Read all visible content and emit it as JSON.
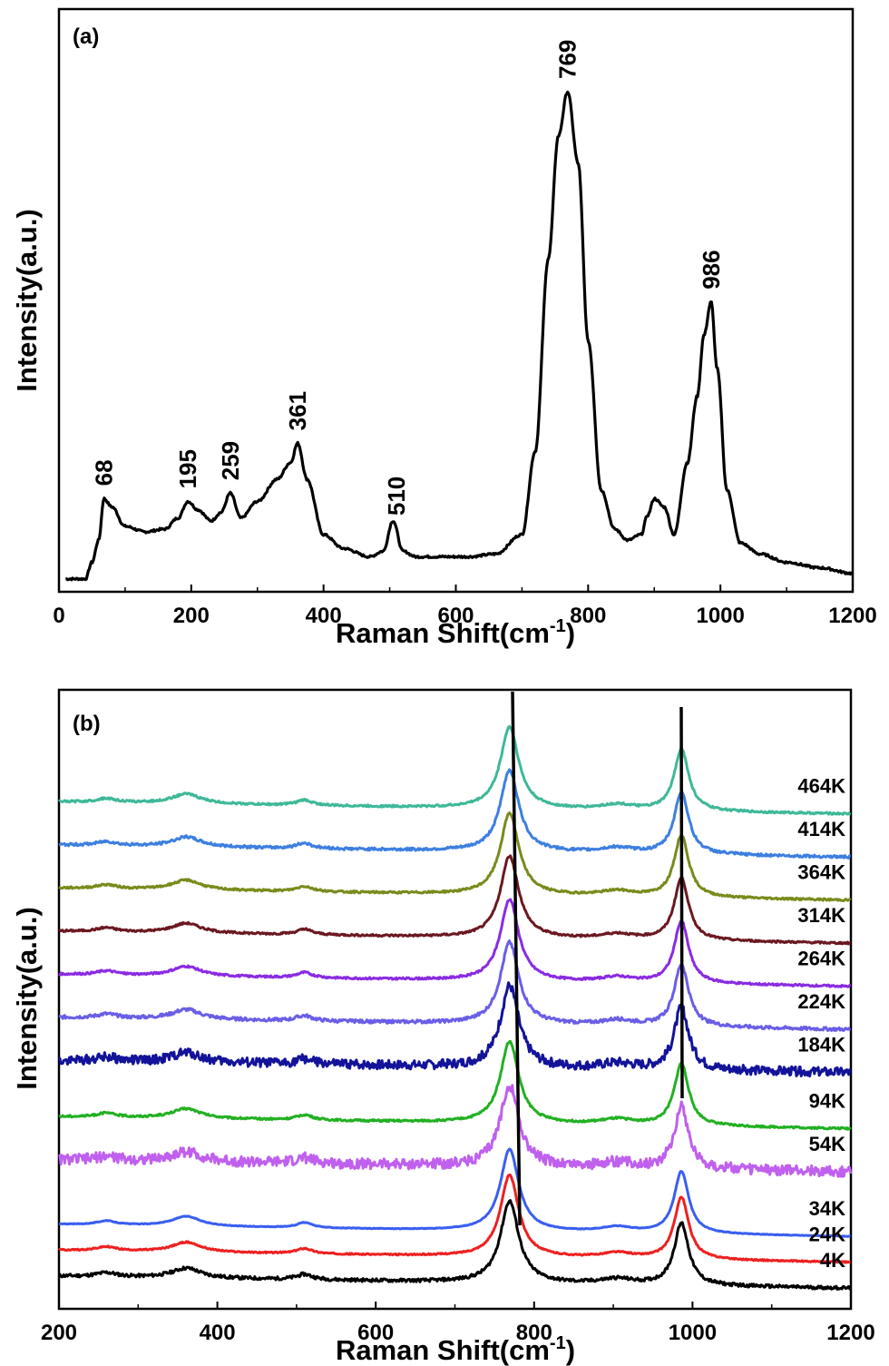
{
  "chart_data": [
    {
      "type": "line",
      "panel_label": "(a)",
      "xlabel": "Raman Shift(cm",
      "xlabel_sup": "-1",
      "xlabel_close": ")",
      "ylabel": "Intensity(a.u.)",
      "xlim": [
        0,
        1200
      ],
      "ylim": [
        0,
        1.0
      ],
      "xticks": [
        0,
        200,
        400,
        600,
        800,
        1000,
        1200
      ],
      "peak_labels": [
        {
          "x": 68,
          "text": "68"
        },
        {
          "x": 195,
          "text": "195"
        },
        {
          "x": 259,
          "text": "259"
        },
        {
          "x": 361,
          "text": "361"
        },
        {
          "x": 510,
          "text": "510"
        },
        {
          "x": 769,
          "text": "769"
        },
        {
          "x": 986,
          "text": "986"
        }
      ],
      "series": [
        {
          "color": "#000000",
          "x": [
            10,
            40,
            50,
            60,
            68,
            80,
            100,
            130,
            160,
            180,
            195,
            210,
            230,
            245,
            259,
            275,
            300,
            330,
            350,
            361,
            375,
            400,
            430,
            470,
            490,
            505,
            520,
            540,
            580,
            620,
            660,
            700,
            720,
            740,
            755,
            769,
            785,
            800,
            820,
            840,
            860,
            880,
            890,
            900,
            915,
            930,
            950,
            965,
            975,
            986,
            995,
            1010,
            1030,
            1060,
            1100,
            1150,
            1200
          ],
          "y": [
            0.02,
            0.02,
            0.05,
            0.09,
            0.165,
            0.15,
            0.115,
            0.105,
            0.11,
            0.13,
            0.16,
            0.145,
            0.125,
            0.14,
            0.175,
            0.13,
            0.16,
            0.2,
            0.23,
            0.265,
            0.2,
            0.1,
            0.075,
            0.06,
            0.07,
            0.125,
            0.07,
            0.06,
            0.06,
            0.06,
            0.065,
            0.1,
            0.25,
            0.6,
            0.82,
            0.9,
            0.77,
            0.45,
            0.18,
            0.11,
            0.09,
            0.1,
            0.135,
            0.165,
            0.15,
            0.1,
            0.23,
            0.35,
            0.46,
            0.52,
            0.4,
            0.18,
            0.085,
            0.065,
            0.05,
            0.04,
            0.03
          ]
        }
      ]
    },
    {
      "type": "line",
      "panel_label": "(b)",
      "xlabel": "Raman Shift(cm",
      "xlabel_sup": "-1",
      "xlabel_close": ")",
      "ylabel": "Intensity(a.u.)",
      "xlim": [
        200,
        1200
      ],
      "xticks": [
        200,
        400,
        600,
        800,
        1000,
        1200
      ],
      "series": [
        {
          "name": "464K",
          "color": "#3fb898",
          "offset": 11.0,
          "noise": 0.015
        },
        {
          "name": "414K",
          "color": "#3d7fe0",
          "offset": 10.0,
          "noise": 0.02
        },
        {
          "name": "364K",
          "color": "#7a8a1c",
          "offset": 9.0,
          "noise": 0.015
        },
        {
          "name": "314K",
          "color": "#6b1820",
          "offset": 8.0,
          "noise": 0.015
        },
        {
          "name": "264K",
          "color": "#8a2be2",
          "offset": 7.0,
          "noise": 0.015
        },
        {
          "name": "224K",
          "color": "#6a5ee6",
          "offset": 6.0,
          "noise": 0.025
        },
        {
          "name": "184K",
          "color": "#13139a",
          "offset": 5.0,
          "noise": 0.07
        },
        {
          "name": "94K",
          "color": "#22b022",
          "offset": 3.7,
          "noise": 0.015
        },
        {
          "name": "54K",
          "color": "#c060ee",
          "offset": 2.7,
          "noise": 0.08
        },
        {
          "name": "34K",
          "color": "#3a5ef0",
          "offset": 1.2,
          "noise": 0.005
        },
        {
          "name": "24K",
          "color": "#ee2020",
          "offset": 0.6,
          "noise": 0.01
        },
        {
          "name": "4K",
          "color": "#000000",
          "offset": 0.0,
          "noise": 0.025
        }
      ]
    }
  ]
}
